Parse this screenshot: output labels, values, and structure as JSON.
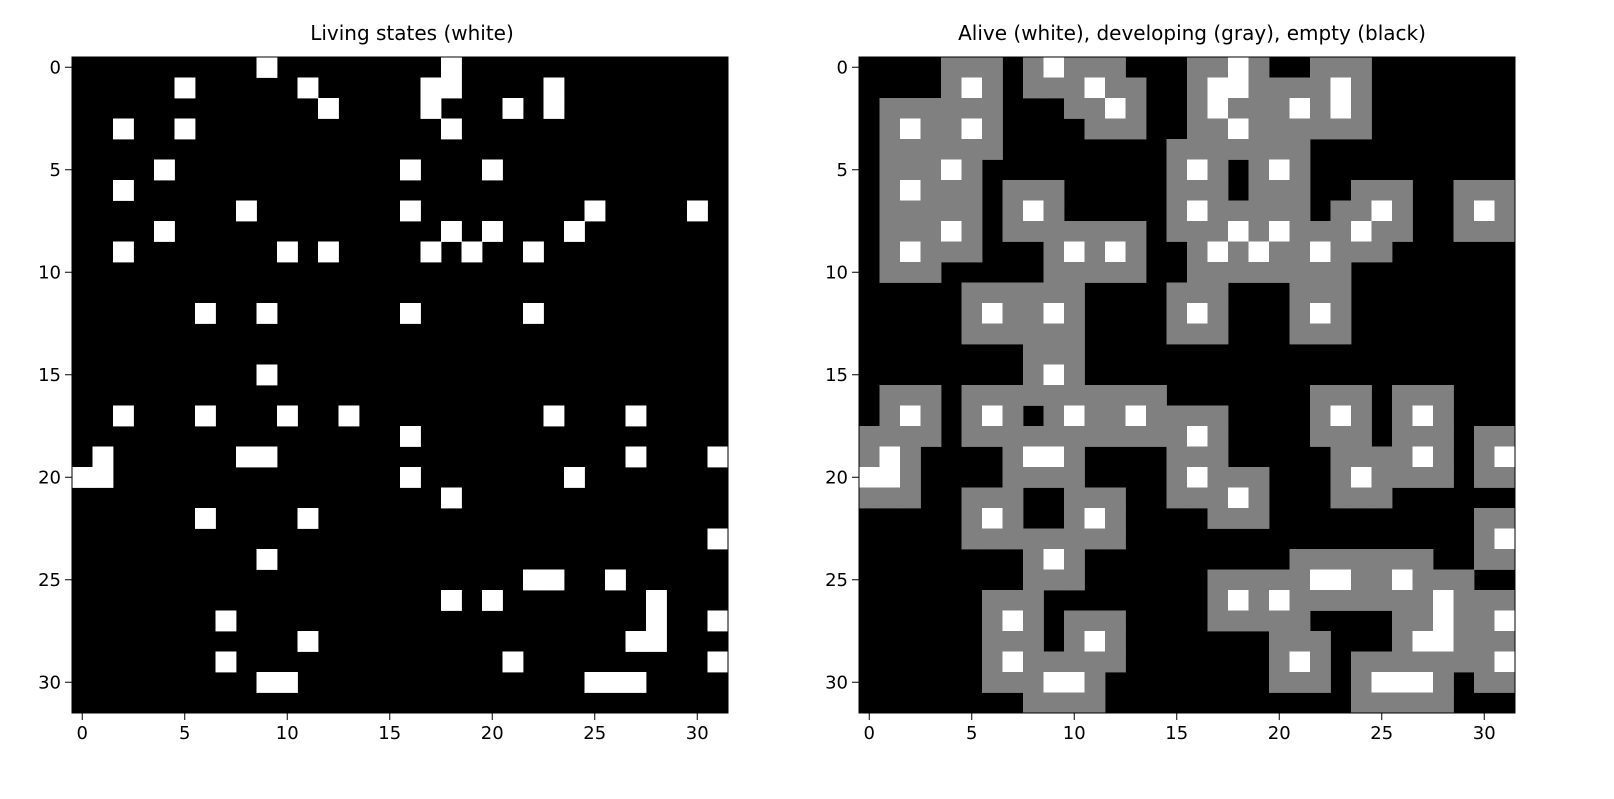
{
  "figure": {
    "background": "#ffffff"
  },
  "chart_data": [
    {
      "type": "heatmap",
      "title": "Living states (white)",
      "grid_size": 32,
      "xticks": [
        0,
        5,
        10,
        15,
        20,
        25,
        30
      ],
      "yticks": [
        0,
        5,
        10,
        15,
        20,
        25,
        30
      ],
      "xlim": [
        -0.5,
        31.5
      ],
      "ylim": [
        31.5,
        -0.5
      ],
      "colors": {
        "alive": "#ffffff",
        "empty": "#000000"
      },
      "grid": false,
      "alive_cells": [
        [
          0,
          9
        ],
        [
          0,
          18
        ],
        [
          1,
          5
        ],
        [
          1,
          11
        ],
        [
          1,
          17
        ],
        [
          1,
          18
        ],
        [
          1,
          23
        ],
        [
          2,
          12
        ],
        [
          2,
          17
        ],
        [
          2,
          21
        ],
        [
          2,
          23
        ],
        [
          3,
          2
        ],
        [
          3,
          5
        ],
        [
          3,
          18
        ],
        [
          5,
          4
        ],
        [
          5,
          16
        ],
        [
          5,
          20
        ],
        [
          6,
          2
        ],
        [
          7,
          8
        ],
        [
          7,
          16
        ],
        [
          7,
          25
        ],
        [
          7,
          30
        ],
        [
          8,
          4
        ],
        [
          8,
          18
        ],
        [
          8,
          20
        ],
        [
          8,
          24
        ],
        [
          9,
          2
        ],
        [
          9,
          10
        ],
        [
          9,
          12
        ],
        [
          9,
          17
        ],
        [
          9,
          19
        ],
        [
          9,
          22
        ],
        [
          12,
          6
        ],
        [
          12,
          9
        ],
        [
          12,
          16
        ],
        [
          12,
          22
        ],
        [
          15,
          9
        ],
        [
          17,
          2
        ],
        [
          17,
          6
        ],
        [
          17,
          10
        ],
        [
          17,
          13
        ],
        [
          17,
          23
        ],
        [
          17,
          27
        ],
        [
          18,
          16
        ],
        [
          19,
          1
        ],
        [
          19,
          8
        ],
        [
          19,
          9
        ],
        [
          19,
          27
        ],
        [
          19,
          31
        ],
        [
          20,
          0
        ],
        [
          20,
          1
        ],
        [
          20,
          16
        ],
        [
          20,
          24
        ],
        [
          21,
          18
        ],
        [
          22,
          6
        ],
        [
          22,
          11
        ],
        [
          23,
          31
        ],
        [
          24,
          9
        ],
        [
          25,
          22
        ],
        [
          25,
          23
        ],
        [
          25,
          26
        ],
        [
          26,
          18
        ],
        [
          26,
          20
        ],
        [
          26,
          28
        ],
        [
          27,
          7
        ],
        [
          27,
          28
        ],
        [
          27,
          31
        ],
        [
          28,
          11
        ],
        [
          28,
          27
        ],
        [
          28,
          28
        ],
        [
          29,
          7
        ],
        [
          29,
          21
        ],
        [
          29,
          31
        ],
        [
          30,
          9
        ],
        [
          30,
          10
        ],
        [
          30,
          25
        ],
        [
          30,
          26
        ],
        [
          30,
          27
        ]
      ]
    },
    {
      "type": "heatmap",
      "title": "Alive (white), developing (gray), empty (black)",
      "grid_size": 32,
      "xticks": [
        0,
        5,
        10,
        15,
        20,
        25,
        30
      ],
      "yticks": [
        0,
        5,
        10,
        15,
        20,
        25,
        30
      ],
      "xlim": [
        -0.5,
        31.5
      ],
      "ylim": [
        31.5,
        -0.5
      ],
      "colors": {
        "alive": "#ffffff",
        "developing": "#808080",
        "empty": "#000000"
      },
      "grid": false,
      "alive_cells": "same as panel 1",
      "developing_cells": "all cells within one step (8-neighborhood) of an alive cell that are not alive themselves, except (5,18), (17,8), (21,8), (21,9), (25,30)"
    }
  ]
}
